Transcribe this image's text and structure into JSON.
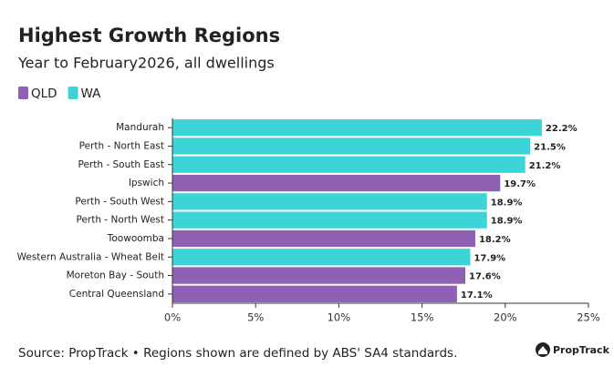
{
  "chart_data": {
    "type": "hbar",
    "title": "Highest Growth Regions",
    "subtitle": "Year to February2026, all dwellings",
    "categories": [
      "Mandurah",
      "Perth - North East",
      "Perth - South East",
      "Ipswich",
      "Perth - South West",
      "Perth - North West",
      "Toowoomba",
      "Western Australia - Wheat Belt",
      "Moreton Bay - South",
      "Central Queensland"
    ],
    "series": [
      {
        "name": "QLD",
        "color": "#8e61b4",
        "values": [
          null,
          null,
          null,
          19.7,
          null,
          null,
          18.2,
          null,
          17.6,
          17.1
        ],
        "value_labels": [
          null,
          null,
          null,
          "19.7%",
          null,
          null,
          "18.2%",
          null,
          "17.6%",
          "17.1%"
        ]
      },
      {
        "name": "WA",
        "color": "#3dd4d7",
        "values": [
          22.2,
          21.5,
          21.2,
          null,
          18.9,
          18.9,
          null,
          17.9,
          null,
          null
        ],
        "value_labels": [
          "22.2%",
          "21.5%",
          "21.2%",
          null,
          "18.9%",
          "18.9%",
          null,
          "17.9%",
          null,
          null
        ]
      }
    ],
    "xlim": [
      0,
      25
    ],
    "xticks": [
      {
        "value": 0,
        "label": "0%"
      },
      {
        "value": 5,
        "label": "5%"
      },
      {
        "value": 10,
        "label": "10%"
      },
      {
        "value": 15,
        "label": "15%"
      },
      {
        "value": 20,
        "label": "20%"
      },
      {
        "value": 25,
        "label": "25%"
      }
    ],
    "source": "Source: PropTrack • Regions shown are defined by ABS' SA4 standards.",
    "brand": "PropTrack"
  }
}
